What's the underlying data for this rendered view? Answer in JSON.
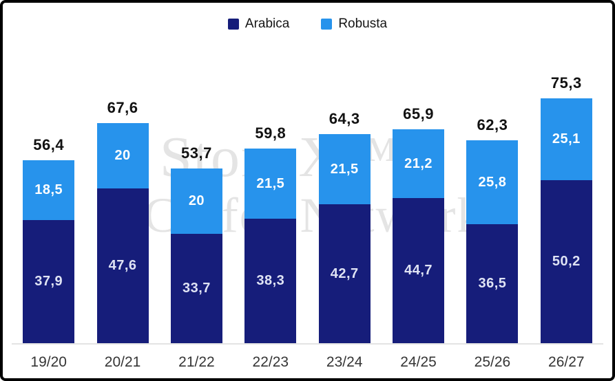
{
  "legend": {
    "items": [
      {
        "label": "Arabica"
      },
      {
        "label": "Robusta"
      }
    ]
  },
  "watermark": {
    "line1": "StoneX™",
    "line2": "Coffee Network"
  },
  "colors": {
    "arabica": "#161d7a",
    "robusta": "#2793ec",
    "arabica_label": "#dfe3f4",
    "robusta_label": "#ffffff",
    "total_label": "#121212",
    "tick_label": "#353535",
    "axis_line": "#e3e3e3",
    "watermark": "#e4e4e4",
    "background": "#ffffff",
    "border": "#000000"
  },
  "chart_data": {
    "type": "bar",
    "stacked": true,
    "title": "",
    "xlabel": "",
    "ylabel": "",
    "decimal_separator": ",",
    "categories": [
      "19/20",
      "20/21",
      "21/22",
      "22/23",
      "23/24",
      "24/25",
      "25/26",
      "26/27"
    ],
    "series": [
      {
        "name": "Arabica",
        "color": "#161d7a",
        "values": [
          37.9,
          47.6,
          33.7,
          38.3,
          42.7,
          44.7,
          36.5,
          50.2
        ]
      },
      {
        "name": "Robusta",
        "color": "#2793ec",
        "values": [
          18.5,
          20,
          20,
          21.5,
          21.5,
          21.2,
          25.8,
          25.1
        ]
      }
    ],
    "totals": [
      56.4,
      67.6,
      53.7,
      59.8,
      64.3,
      65.9,
      62.3,
      75.3
    ],
    "ylim": [
      0,
      80
    ],
    "legend_position": "top",
    "grid": false
  }
}
